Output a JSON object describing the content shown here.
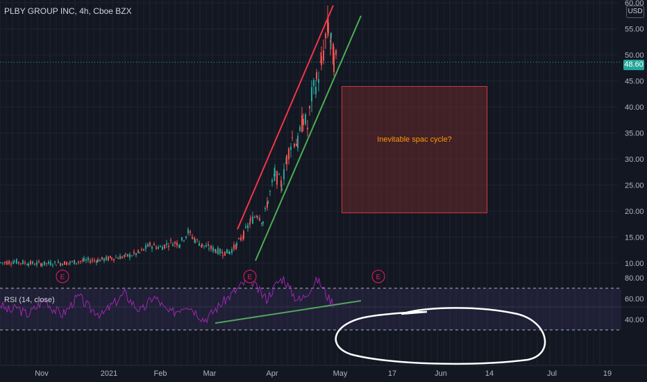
{
  "header": {
    "symbol": "PLBY GROUP INC, 4h, Cboe BZX",
    "currency": "USD",
    "last_price": "48.60"
  },
  "annotation": {
    "text": "Inevitable spac cycle?"
  },
  "rsi": {
    "title": "RSI (14, close)"
  },
  "earnings_marker": "E",
  "chart_data": [
    {
      "type": "candlestick",
      "title": "PLBY GROUP INC, 4h, Cboe BZX",
      "y_axis": {
        "range": [
          8.5,
          61
        ],
        "ticks": [
          "10.00",
          "15.00",
          "20.00",
          "25.00",
          "30.00",
          "35.00",
          "40.00",
          "45.00",
          "50.00",
          "55.00",
          "60.00"
        ]
      },
      "x_axis": {
        "ticks": [
          "Nov",
          "2021",
          "Feb",
          "Mar",
          "Apr",
          "May",
          "17",
          "Jun",
          "14",
          "Jul",
          "19"
        ]
      },
      "last_price": 48.6,
      "price_path": [
        [
          0,
          10.1
        ],
        [
          20,
          10.3
        ],
        [
          40,
          10.0
        ],
        [
          60,
          9.9
        ],
        [
          80,
          10.0
        ],
        [
          100,
          10.1
        ],
        [
          120,
          10.5
        ],
        [
          140,
          10.6
        ],
        [
          160,
          11.0
        ],
        [
          180,
          11.3
        ],
        [
          200,
          12.0
        ],
        [
          215,
          13.5
        ],
        [
          230,
          13.0
        ],
        [
          245,
          14.0
        ],
        [
          258,
          13.8
        ],
        [
          270,
          16.0
        ],
        [
          280,
          14.5
        ],
        [
          290,
          13.5
        ],
        [
          300,
          13.0
        ],
        [
          310,
          12.5
        ],
        [
          320,
          12.0
        ],
        [
          330,
          12.2
        ],
        [
          340,
          13.5
        ],
        [
          350,
          15.5
        ],
        [
          360,
          18.0
        ],
        [
          370,
          19.5
        ],
        [
          378,
          18.0
        ],
        [
          385,
          22.0
        ],
        [
          395,
          27.0
        ],
        [
          405,
          25.0
        ],
        [
          412,
          30.0
        ],
        [
          420,
          34.0
        ],
        [
          428,
          33.0
        ],
        [
          436,
          38.0
        ],
        [
          442,
          36.0
        ],
        [
          448,
          42.0
        ],
        [
          455,
          45.0
        ],
        [
          462,
          48.0
        ],
        [
          468,
          53.0
        ],
        [
          472,
          55.5
        ],
        [
          476,
          52.0
        ],
        [
          480,
          49.0
        ],
        [
          484,
          48.6
        ]
      ],
      "earnings_marker_positions": [
        0,
        360,
        545
      ],
      "trendlines": [
        {
          "color": "#f23645",
          "from": [
            342,
            16.5
          ],
          "to": [
            480,
            59.5
          ]
        },
        {
          "color": "#4caf50",
          "from": [
            368,
            10.5
          ],
          "to": [
            520,
            57.5
          ]
        }
      ],
      "annotation_box": {
        "text": "Inevitable spac cycle?",
        "y_range": [
          19.8,
          44.2
        ]
      }
    },
    {
      "type": "line",
      "title": "RSI (14, close)",
      "y_axis": {
        "ticks": [
          "40.00",
          "60.00",
          "80.00"
        ]
      },
      "bands": {
        "upper": 70,
        "lower": 30
      },
      "series": [
        {
          "values": [
            55,
            50,
            48,
            52,
            47,
            45,
            50,
            55,
            60,
            52,
            48,
            45,
            50,
            58,
            62,
            55,
            50,
            48,
            44,
            50,
            55,
            60,
            65,
            58,
            52,
            48,
            55,
            62,
            58,
            50,
            46,
            48,
            52,
            55,
            50,
            45,
            40,
            44,
            50,
            55,
            60,
            65,
            70,
            75,
            80,
            72,
            65,
            60,
            68,
            76,
            80,
            70,
            62,
            58,
            65,
            72,
            78,
            70,
            60,
            55
          ]
        }
      ],
      "trendline": {
        "color": "#4caf50",
        "from": [
          310,
          36.5
        ],
        "to": [
          520,
          58
        ]
      }
    }
  ]
}
